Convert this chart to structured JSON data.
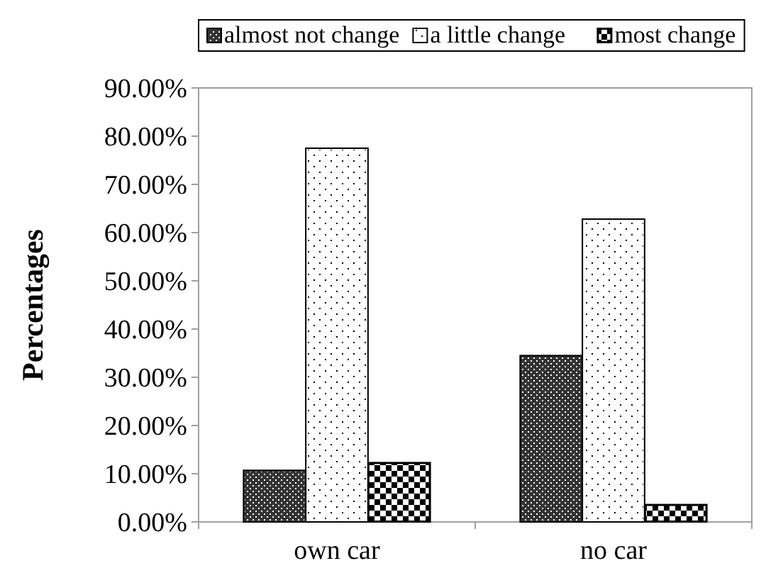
{
  "chart_data": {
    "type": "bar",
    "ylabel": "Percentages",
    "categories": [
      "own car",
      "no car"
    ],
    "series": [
      {
        "name": "almost not change",
        "color": "#333333",
        "values": [
          10.7,
          34.5
        ]
      },
      {
        "name": "a little change",
        "color": "#ffffff",
        "values": [
          77.5,
          62.8
        ]
      },
      {
        "name": "most change",
        "color": "#000000",
        "values": [
          12.3,
          3.6
        ]
      }
    ],
    "ylim": [
      0,
      90
    ],
    "yticks": [
      {
        "value": 0,
        "label": "0.00%"
      },
      {
        "value": 10,
        "label": "10.00%"
      },
      {
        "value": 20,
        "label": "20.00%"
      },
      {
        "value": 30,
        "label": "30.00%"
      },
      {
        "value": 40,
        "label": "40.00%"
      },
      {
        "value": 50,
        "label": "50.00%"
      },
      {
        "value": 60,
        "label": "60.00%"
      },
      {
        "value": 70,
        "label": "70.00%"
      },
      {
        "value": 80,
        "label": "80.00%"
      },
      {
        "value": 90,
        "label": "90.00%"
      }
    ],
    "grid": false,
    "legend": "top"
  }
}
